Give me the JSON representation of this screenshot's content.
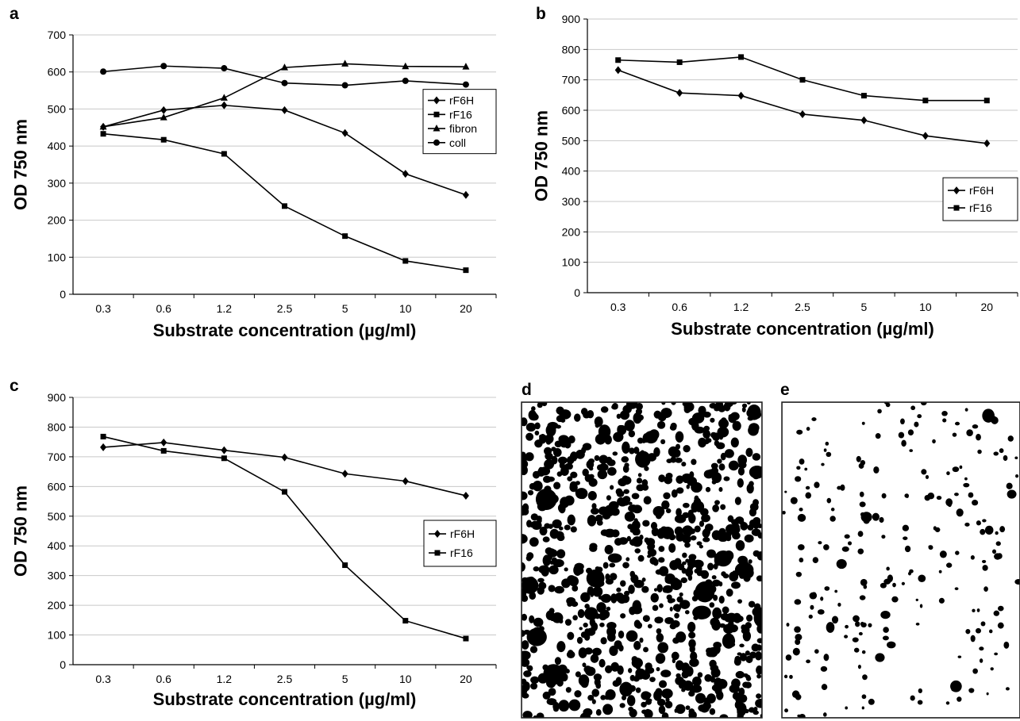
{
  "chart_data": [
    {
      "type": "line",
      "label": "a",
      "xlabel": "Substrate concentration (µg/ml)",
      "ylabel": "OD 750 nm",
      "categories": [
        "0.3",
        "0.6",
        "1.2",
        "2.5",
        "5",
        "10",
        "20"
      ],
      "ylim": [
        0,
        700
      ],
      "yticks": [
        0,
        100,
        200,
        300,
        400,
        500,
        600,
        700
      ],
      "grid": true,
      "legend": "center right",
      "series": [
        {
          "name": "rF6H",
          "color": "#000000",
          "marker": "diamond",
          "values": [
            452,
            497,
            510,
            497,
            435,
            325,
            268
          ]
        },
        {
          "name": "rF16",
          "color": "#000000",
          "marker": "square",
          "values": [
            433,
            417,
            379,
            238,
            157,
            90,
            65
          ]
        },
        {
          "name": "fibron",
          "color": "#000000",
          "marker": "triangle",
          "values": [
            452,
            477,
            530,
            612,
            622,
            615,
            614
          ]
        },
        {
          "name": "coll",
          "color": "#000000",
          "marker": "circle",
          "values": [
            601,
            616,
            610,
            570,
            564,
            576,
            566
          ]
        }
      ]
    },
    {
      "type": "line",
      "label": "b",
      "xlabel": "Substrate concentration (µg/ml)",
      "ylabel": "OD 750 nm",
      "categories": [
        "0.3",
        "0.6",
        "1.2",
        "2.5",
        "5",
        "10",
        "20"
      ],
      "ylim": [
        0,
        900
      ],
      "yticks": [
        0,
        100,
        200,
        300,
        400,
        500,
        600,
        700,
        800,
        900
      ],
      "grid": true,
      "legend": "lower right",
      "series": [
        {
          "name": "rF6H",
          "color": "#000000",
          "marker": "diamond",
          "values": [
            732,
            657,
            648,
            587,
            567,
            516,
            491
          ]
        },
        {
          "name": "rF16",
          "color": "#000000",
          "marker": "square",
          "values": [
            765,
            758,
            775,
            700,
            648,
            632,
            632
          ]
        }
      ]
    },
    {
      "type": "line",
      "label": "c",
      "xlabel": "Substrate concentration (µg/ml)",
      "ylabel": "OD 750 nm",
      "categories": [
        "0.3",
        "0.6",
        "1.2",
        "2.5",
        "5",
        "10",
        "20"
      ],
      "ylim": [
        0,
        900
      ],
      "yticks": [
        0,
        100,
        200,
        300,
        400,
        500,
        600,
        700,
        800,
        900
      ],
      "grid": true,
      "legend": "center right",
      "series": [
        {
          "name": "rF6H",
          "color": "#000000",
          "marker": "diamond",
          "values": [
            732,
            748,
            722,
            698,
            643,
            618,
            569
          ]
        },
        {
          "name": "rF16",
          "color": "#000000",
          "marker": "square",
          "values": [
            768,
            720,
            695,
            582,
            335,
            148,
            88
          ]
        }
      ]
    }
  ],
  "images": [
    {
      "label": "d"
    },
    {
      "label": "e"
    }
  ]
}
